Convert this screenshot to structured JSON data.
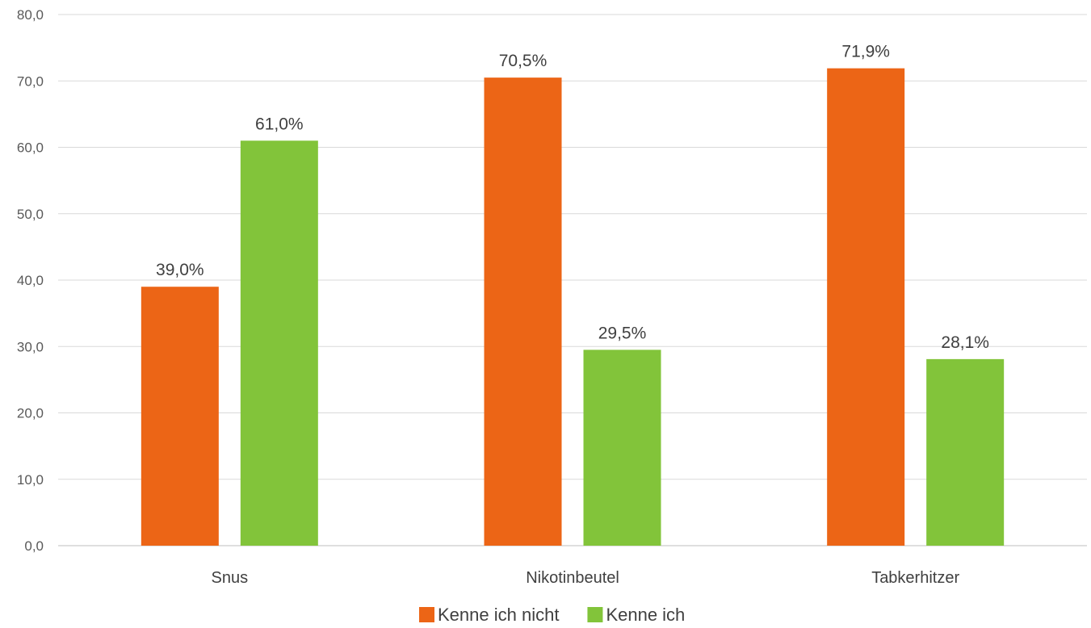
{
  "chart_data": {
    "type": "bar",
    "categories": [
      "Snus",
      "Nikotinbeutel",
      "Tabkerhitzer"
    ],
    "series": [
      {
        "name": "Kenne ich nicht",
        "values": [
          39.0,
          70.5,
          71.9
        ],
        "labels": [
          "39,0%",
          "70,5%",
          "71,9%"
        ],
        "color": "#EC6516"
      },
      {
        "name": "Kenne ich",
        "values": [
          61.0,
          29.5,
          28.1
        ],
        "labels": [
          "61,0%",
          "29,5%",
          "28,1%"
        ],
        "color": "#82C43A"
      }
    ],
    "ylim": [
      0,
      80
    ],
    "yticks": [
      0,
      10,
      20,
      30,
      40,
      50,
      60,
      70,
      80
    ],
    "ytick_labels": [
      "0,0",
      "10,0",
      "20,0",
      "30,0",
      "40,0",
      "50,0",
      "60,0",
      "70,0",
      "80,0"
    ],
    "grid": true,
    "legend_position": "bottom",
    "title": "",
    "xlabel": "",
    "ylabel": ""
  }
}
